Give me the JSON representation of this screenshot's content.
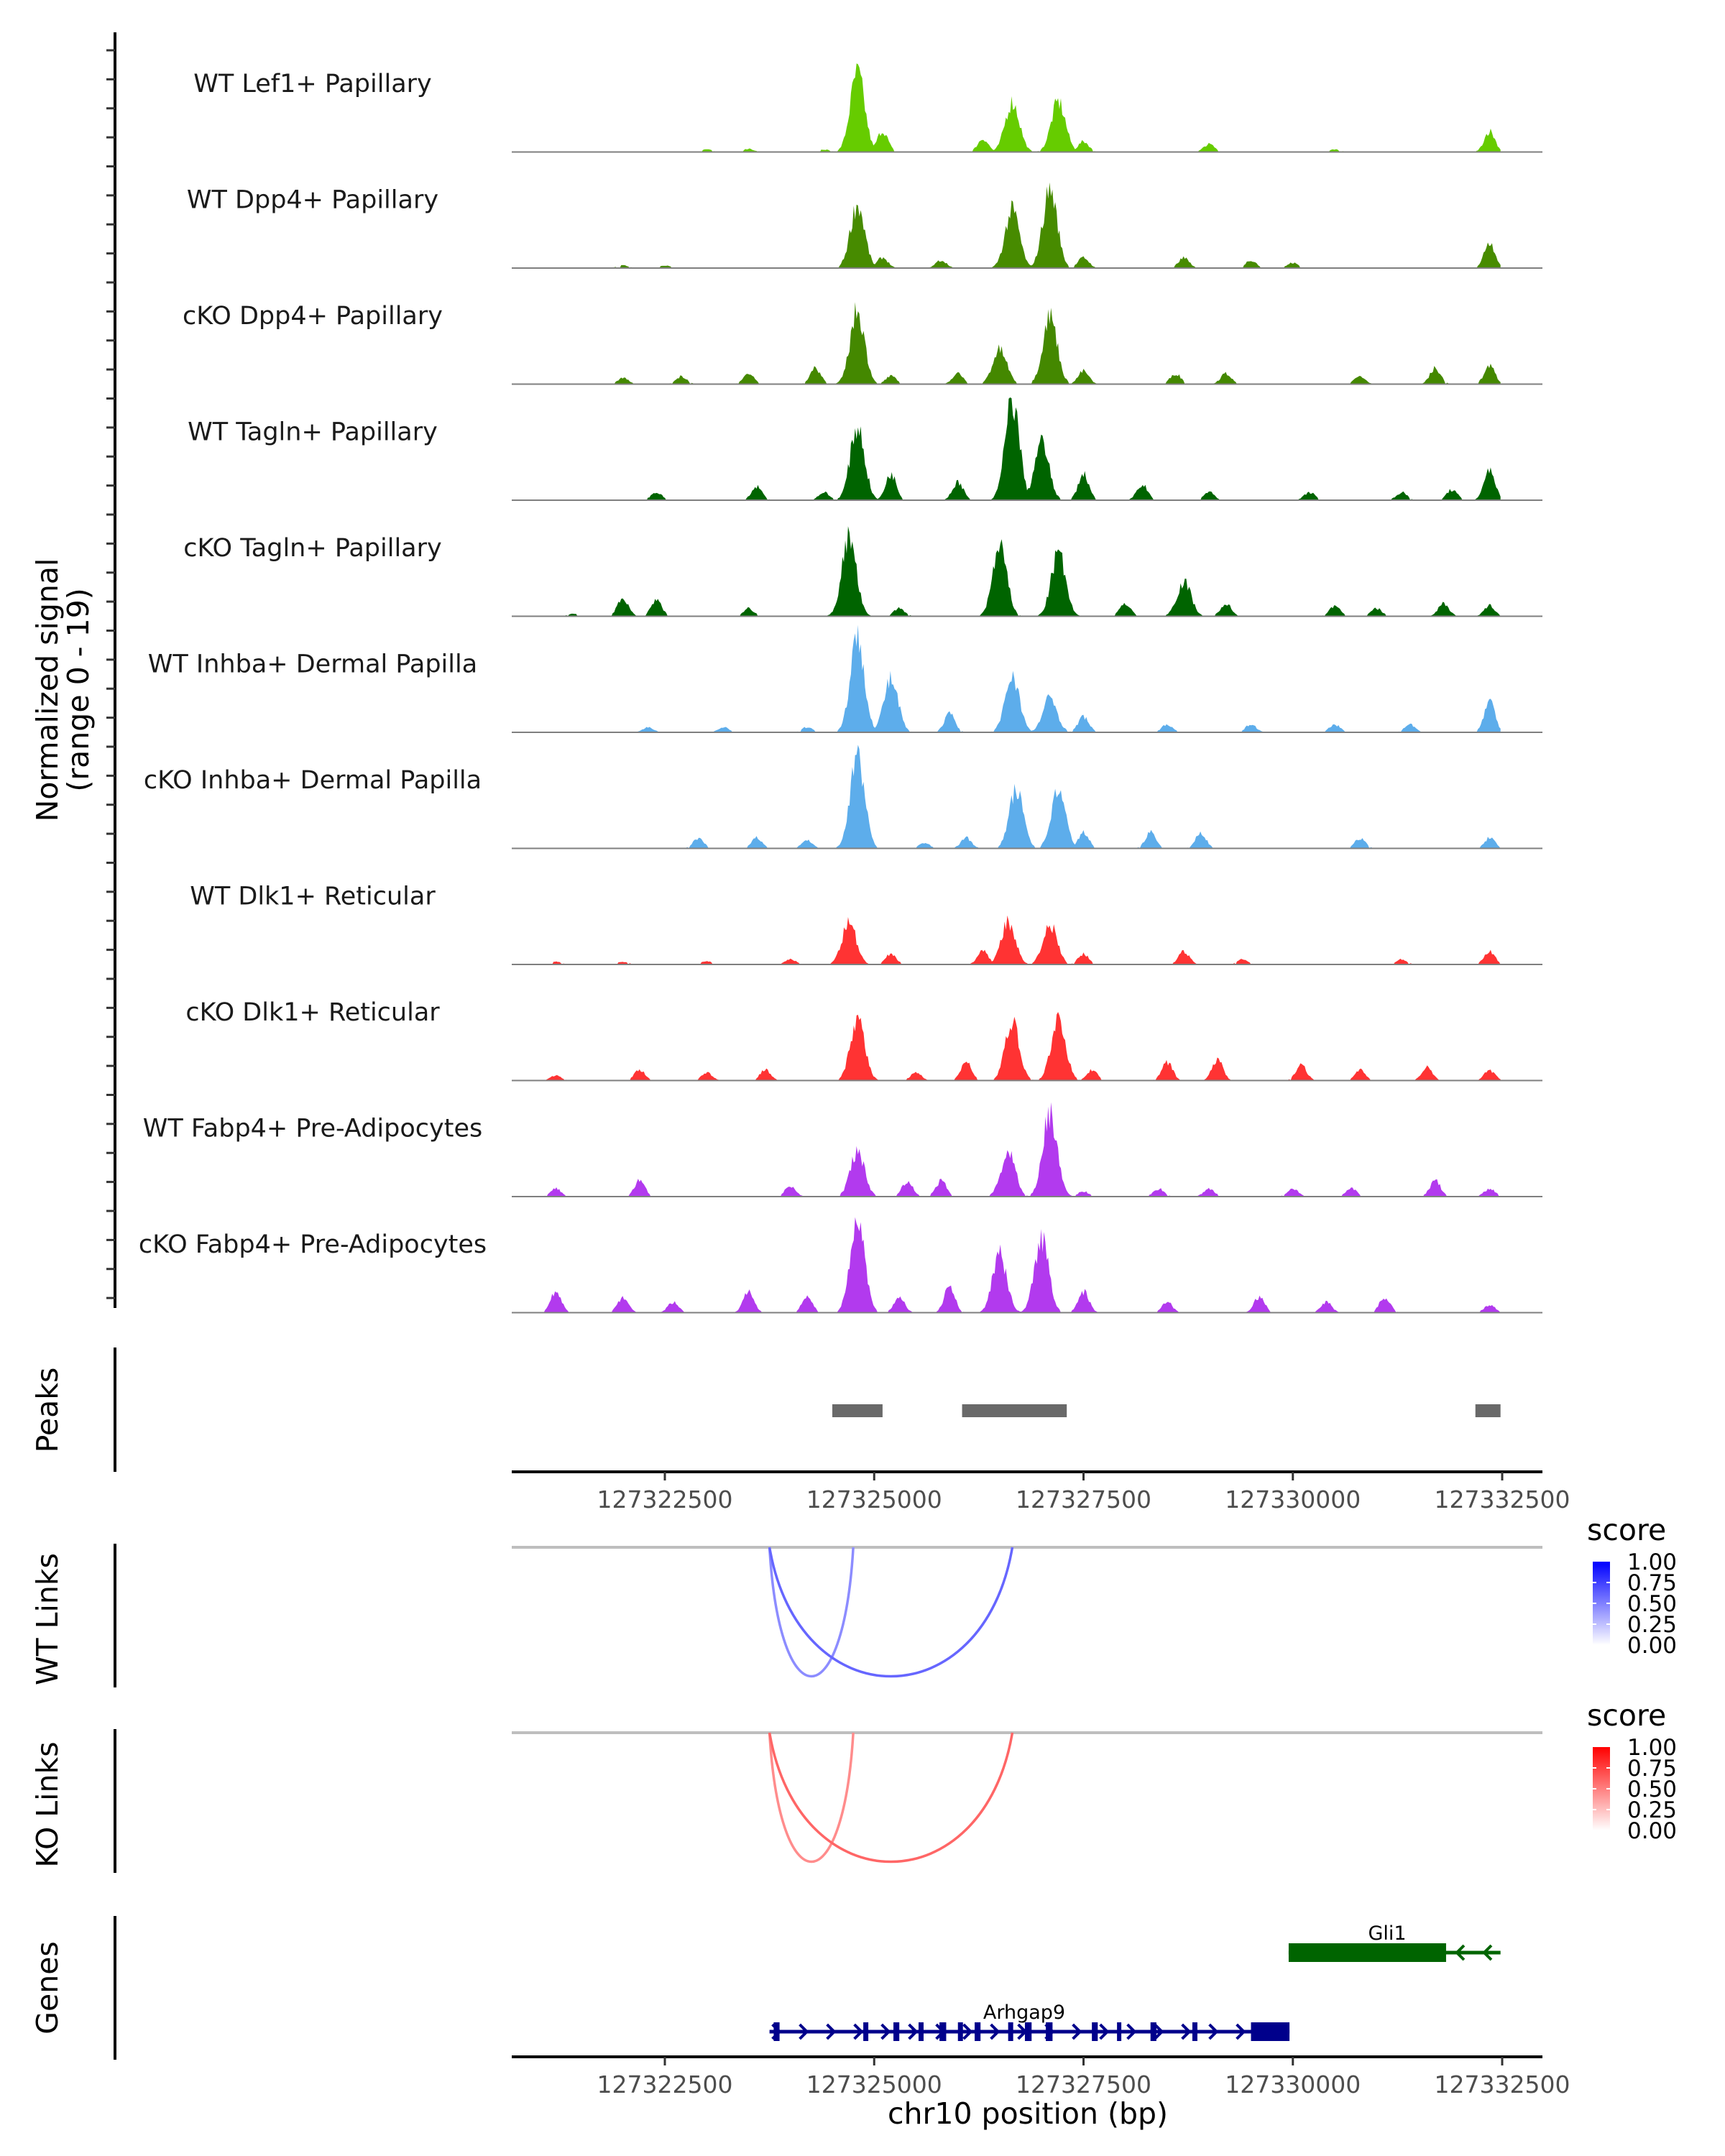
{
  "chart_data": {
    "type": "area",
    "title": "",
    "region": {
      "chromosome": "chr10",
      "start": 127320700,
      "end": 127332700
    },
    "xlabel": "chr10 position (bp)",
    "x_ticks": [
      127322500,
      127325000,
      127327500,
      127330000,
      127332500
    ],
    "x_tick_labels": [
      "127322500",
      "127325000",
      "127327500",
      "127330000",
      "127332500"
    ],
    "coverage": {
      "ylabel_line1": "Normalized signal",
      "ylabel_line2": "(range 0 - 19)",
      "ylim": [
        0,
        19
      ],
      "tracks": [
        {
          "name": "WT Lef1+ Papillary",
          "color": "#66CC00",
          "peaks": [
            [
              127323000,
              0.5
            ],
            [
              127323500,
              0.6
            ],
            [
              127324400,
              0.5
            ],
            [
              127324800,
              15
            ],
            [
              127325100,
              4
            ],
            [
              127326300,
              2.5
            ],
            [
              127326650,
              9.5
            ],
            [
              127327200,
              9.5
            ],
            [
              127327500,
              2
            ],
            [
              127329000,
              1.5
            ],
            [
              127330500,
              0.5
            ],
            [
              127332350,
              4
            ]
          ]
        },
        {
          "name": "WT Dpp4+ Papillary",
          "color": "#478B00",
          "peaks": [
            [
              127322000,
              0.5
            ],
            [
              127322500,
              0.5
            ],
            [
              127324800,
              12
            ],
            [
              127325100,
              2
            ],
            [
              127325800,
              1.5
            ],
            [
              127326650,
              11
            ],
            [
              127327100,
              15
            ],
            [
              127327500,
              2
            ],
            [
              127328700,
              2
            ],
            [
              127329500,
              1.5
            ],
            [
              127330000,
              1
            ],
            [
              127332350,
              5
            ]
          ]
        },
        {
          "name": "cKO Dpp4+ Papillary",
          "color": "#448800",
          "peaks": [
            [
              127322000,
              1.2
            ],
            [
              127322700,
              1.5
            ],
            [
              127323500,
              2
            ],
            [
              127324300,
              3
            ],
            [
              127324800,
              14
            ],
            [
              127325200,
              1.5
            ],
            [
              127326000,
              2
            ],
            [
              127326500,
              6.5
            ],
            [
              127327100,
              13
            ],
            [
              127327500,
              2.5
            ],
            [
              127328600,
              2
            ],
            [
              127329200,
              2
            ],
            [
              127330800,
              1.5
            ],
            [
              127331700,
              3
            ],
            [
              127332350,
              3.5
            ]
          ]
        },
        {
          "name": "WT Tagln+ Papillary",
          "color": "#006400",
          "peaks": [
            [
              127322400,
              1.5
            ],
            [
              127323600,
              2.5
            ],
            [
              127324400,
              1.5
            ],
            [
              127324800,
              14
            ],
            [
              127325200,
              5
            ],
            [
              127326000,
              3.5
            ],
            [
              127326650,
              19
            ],
            [
              127327000,
              11
            ],
            [
              127327500,
              5
            ],
            [
              127328200,
              3
            ],
            [
              127329000,
              1.5
            ],
            [
              127330200,
              1.5
            ],
            [
              127331300,
              1.5
            ],
            [
              127331900,
              2
            ],
            [
              127332350,
              6
            ]
          ]
        },
        {
          "name": "cKO Tagln+ Papillary",
          "color": "#006400",
          "peaks": [
            [
              127321400,
              0.5
            ],
            [
              127322000,
              3.5
            ],
            [
              127322400,
              3
            ],
            [
              127323500,
              1.5
            ],
            [
              127324700,
              15
            ],
            [
              127325300,
              1.5
            ],
            [
              127326500,
              13
            ],
            [
              127327200,
              12
            ],
            [
              127328000,
              2.5
            ],
            [
              127328700,
              6.5
            ],
            [
              127329200,
              2.5
            ],
            [
              127330500,
              2
            ],
            [
              127331000,
              1.5
            ],
            [
              127331800,
              2.5
            ],
            [
              127332350,
              2
            ]
          ]
        },
        {
          "name": "WT Inhba+ Dermal Papilla",
          "color": "#5DADEB",
          "peaks": [
            [
              127322300,
              1
            ],
            [
              127323200,
              1
            ],
            [
              127324200,
              1
            ],
            [
              127324800,
              18
            ],
            [
              127325200,
              10
            ],
            [
              127325900,
              3.5
            ],
            [
              127326650,
              11
            ],
            [
              127327100,
              6.5
            ],
            [
              127327500,
              3
            ],
            [
              127328500,
              1.5
            ],
            [
              127329500,
              1.5
            ],
            [
              127330500,
              1.5
            ],
            [
              127331400,
              1.5
            ],
            [
              127332350,
              6
            ]
          ]
        },
        {
          "name": "cKO Inhba+ Dermal Papilla",
          "color": "#5DADEB",
          "peaks": [
            [
              127322900,
              2
            ],
            [
              127323600,
              2
            ],
            [
              127324200,
              1.5
            ],
            [
              127324800,
              17
            ],
            [
              127325600,
              1
            ],
            [
              127326100,
              2
            ],
            [
              127326700,
              11
            ],
            [
              127327200,
              11
            ],
            [
              127327500,
              3
            ],
            [
              127328300,
              3
            ],
            [
              127328900,
              3
            ],
            [
              127330800,
              2
            ],
            [
              127332350,
              2
            ]
          ]
        },
        {
          "name": "WT Dlk1+ Reticular",
          "color": "#FF3333",
          "peaks": [
            [
              127321200,
              0.5
            ],
            [
              127322000,
              0.5
            ],
            [
              127323000,
              0.6
            ],
            [
              127324000,
              1
            ],
            [
              127324700,
              8
            ],
            [
              127325200,
              2
            ],
            [
              127326300,
              2.5
            ],
            [
              127326600,
              8
            ],
            [
              127327100,
              7.5
            ],
            [
              127327500,
              2
            ],
            [
              127328700,
              2.5
            ],
            [
              127329400,
              1
            ],
            [
              127331300,
              1
            ],
            [
              127332350,
              2.5
            ]
          ]
        },
        {
          "name": "cKO Dlk1+ Reticular",
          "color": "#FF3333",
          "peaks": [
            [
              127321200,
              1
            ],
            [
              127322200,
              2
            ],
            [
              127323000,
              1.5
            ],
            [
              127323700,
              2
            ],
            [
              127324800,
              12
            ],
            [
              127325500,
              1.5
            ],
            [
              127326100,
              3.5
            ],
            [
              127326650,
              11
            ],
            [
              127327200,
              12
            ],
            [
              127327600,
              2
            ],
            [
              127328500,
              3.5
            ],
            [
              127329100,
              4
            ],
            [
              127330100,
              3
            ],
            [
              127330800,
              2
            ],
            [
              127331600,
              2.5
            ],
            [
              127332350,
              2
            ]
          ]
        },
        {
          "name": "WT Fabp4+ Pre-Adipocytes",
          "color": "#B23AEE",
          "peaks": [
            [
              127321200,
              1.5
            ],
            [
              127322200,
              3
            ],
            [
              127324000,
              2
            ],
            [
              127324800,
              8.5
            ],
            [
              127325400,
              3
            ],
            [
              127325800,
              3
            ],
            [
              127326600,
              8.5
            ],
            [
              127327100,
              16
            ],
            [
              127327500,
              1
            ],
            [
              127328400,
              1.5
            ],
            [
              127329000,
              1.5
            ],
            [
              127330000,
              1.5
            ],
            [
              127330700,
              1.5
            ],
            [
              127331700,
              3
            ],
            [
              127332350,
              1.5
            ]
          ]
        },
        {
          "name": "cKO Fabp4+ Pre-Adipocytes",
          "color": "#B23AEE",
          "peaks": [
            [
              127321200,
              4
            ],
            [
              127322000,
              3
            ],
            [
              127322600,
              2
            ],
            [
              127323500,
              4
            ],
            [
              127324200,
              3
            ],
            [
              127324800,
              18
            ],
            [
              127325300,
              3
            ],
            [
              127325900,
              5
            ],
            [
              127326500,
              11
            ],
            [
              127327000,
              14
            ],
            [
              127327500,
              4
            ],
            [
              127328500,
              2
            ],
            [
              127329600,
              3
            ],
            [
              127330400,
              2
            ],
            [
              127331100,
              3
            ],
            [
              127332350,
              1.5
            ]
          ]
        }
      ]
    },
    "peaks_track": {
      "label": "Peaks",
      "color": "#696969",
      "intervals": [
        [
          127324500,
          127325100
        ],
        [
          127326050,
          127327300
        ],
        [
          127332180,
          127332480
        ]
      ]
    },
    "links": [
      {
        "label": "WT Links",
        "legend_title": "score",
        "color_high": "#0000FF",
        "color_low": "#FFFFFF",
        "legend_ticks": [
          "1.00",
          "0.75",
          "0.50",
          "0.25",
          "0.00"
        ],
        "arcs": [
          {
            "start": 127323750,
            "end": 127324750,
            "score": 0.45
          },
          {
            "start": 127323750,
            "end": 127326650,
            "score": 0.6
          }
        ]
      },
      {
        "label": "KO Links",
        "legend_title": "score",
        "color_high": "#FF0000",
        "color_low": "#FFFFFF",
        "legend_ticks": [
          "1.00",
          "0.75",
          "0.50",
          "0.25",
          "0.00"
        ],
        "arcs": [
          {
            "start": 127323750,
            "end": 127324750,
            "score": 0.45
          },
          {
            "start": 127323750,
            "end": 127326650,
            "score": 0.6
          }
        ]
      }
    ],
    "genes": {
      "label": "Genes",
      "items": [
        {
          "name": "Gli1",
          "strand": "-",
          "color": "#006400",
          "start": 127329950,
          "end": 127332480,
          "exons": [
            [
              127329950,
              127331830
            ]
          ]
        },
        {
          "name": "Arhgap9",
          "strand": "+",
          "color": "#00008B",
          "start": 127323750,
          "end": 127329960,
          "exons": [
            [
              127323800,
              127323870
            ],
            [
              127324870,
              127324930
            ],
            [
              127325230,
              127325300
            ],
            [
              127325530,
              127325590
            ],
            [
              127325780,
              127325860
            ],
            [
              127326000,
              127326060
            ],
            [
              127326200,
              127326270
            ],
            [
              127326600,
              127326660
            ],
            [
              127326800,
              127326880
            ],
            [
              127327050,
              127327130
            ],
            [
              127327600,
              127327670
            ],
            [
              127327900,
              127327950
            ],
            [
              127328300,
              127328370
            ],
            [
              127328800,
              127328860
            ],
            [
              127329500,
              127329960
            ]
          ]
        }
      ]
    }
  }
}
